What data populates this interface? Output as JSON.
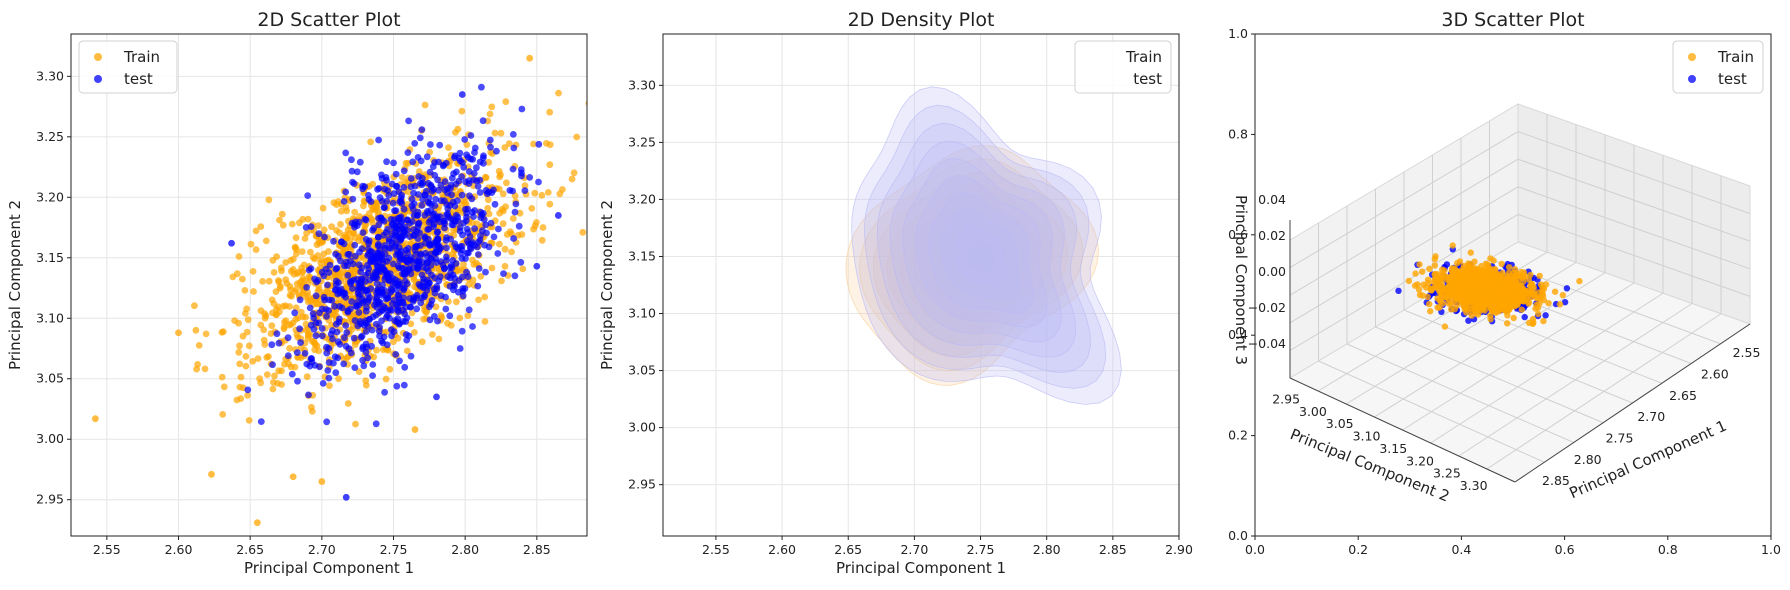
{
  "colors": {
    "train": "#ffa500",
    "test": "#0000ff",
    "density_test": "#b9b9f5",
    "density_train": "#f8cf9a"
  },
  "chart_data": [
    {
      "type": "scatter",
      "title": "2D Scatter Plot",
      "xlabel": "Principal Component 1",
      "ylabel": "Principal Component 2",
      "xlim": [
        2.525,
        2.885
      ],
      "ylim": [
        2.92,
        3.335
      ],
      "xticks": [
        "2.55",
        "2.60",
        "2.65",
        "2.70",
        "2.75",
        "2.80",
        "2.85"
      ],
      "yticks": [
        "2.95",
        "3.00",
        "3.05",
        "3.10",
        "3.15",
        "3.20",
        "3.25",
        "3.30"
      ],
      "grid": true,
      "legend": {
        "placement": "top-left",
        "entries": [
          "Train",
          "test"
        ]
      },
      "series": [
        {
          "name": "Train",
          "color": "#ffa500",
          "center": [
            2.742,
            3.145
          ],
          "spread": [
            0.045,
            0.045
          ],
          "corr": 0.6,
          "count": 1400,
          "outliers": [
            [
              2.542,
              3.017
            ],
            [
              2.655,
              2.931
            ],
            [
              2.845,
              3.315
            ],
            [
              2.623,
              2.971
            ],
            [
              2.68,
              2.969
            ],
            [
              2.6,
              3.088
            ],
            [
              2.765,
              3.008
            ],
            [
              2.7,
              2.965
            ]
          ]
        },
        {
          "name": "test",
          "color": "#0000ff",
          "center": [
            2.755,
            3.15
          ],
          "spread": [
            0.035,
            0.045
          ],
          "corr": 0.55,
          "count": 900,
          "outliers": [
            [
              2.865,
              3.185
            ],
            [
              2.85,
              3.143
            ],
            [
              2.717,
              2.952
            ],
            [
              2.798,
              3.285
            ],
            [
              2.637,
              3.162
            ],
            [
              2.78,
              3.035
            ]
          ]
        }
      ]
    },
    {
      "type": "density",
      "title": "2D Density Plot",
      "xlabel": "Principal Component 1",
      "ylabel": "Principal Component 2",
      "xlim": [
        2.51,
        2.9
      ],
      "ylim": [
        2.905,
        3.345
      ],
      "xticks": [
        "2.55",
        "2.60",
        "2.65",
        "2.70",
        "2.75",
        "2.80",
        "2.85",
        "2.90"
      ],
      "yticks": [
        "2.95",
        "3.00",
        "3.05",
        "3.10",
        "3.15",
        "3.20",
        "3.25",
        "3.30"
      ],
      "grid": true,
      "legend": {
        "placement": "top-right",
        "entries": [
          "Train",
          "test"
        ]
      },
      "series": [
        {
          "name": "Train",
          "color": "#f8cf9a",
          "center": [
            2.74,
            3.145
          ],
          "extent": [
            [
              2.635,
              2.82
            ],
            [
              3.065,
              3.25
            ]
          ]
        },
        {
          "name": "test",
          "color": "#b9b9f5",
          "center": [
            2.75,
            3.15
          ],
          "extent": [
            [
              2.66,
              2.84
            ],
            [
              3.005,
              3.28
            ]
          ]
        }
      ]
    },
    {
      "type": "scatter3d",
      "title": "3D Scatter Plot",
      "xlabel": "Principal Component 1",
      "ylabel": "Principal Component 2",
      "zlabel": "Principal Component 3",
      "outer_xticks": [
        "0.0",
        "0.2",
        "0.4",
        "0.6",
        "0.8",
        "1.0"
      ],
      "outer_yticks": [
        "0.0",
        "0.2",
        "0.4",
        "0.6",
        "0.8",
        "1.0"
      ],
      "x_ticks": [
        "2.55",
        "2.60",
        "2.65",
        "2.70",
        "2.75",
        "2.80",
        "2.85"
      ],
      "y_ticks": [
        "2.95",
        "3.00",
        "3.05",
        "3.10",
        "3.15",
        "3.20",
        "3.25",
        "3.30"
      ],
      "z_ticks": [
        "0.04",
        "0.02",
        "0.00",
        "−0.02",
        "−0.04"
      ],
      "legend": {
        "placement": "top-right",
        "entries": [
          "Train",
          "test"
        ]
      }
    }
  ]
}
